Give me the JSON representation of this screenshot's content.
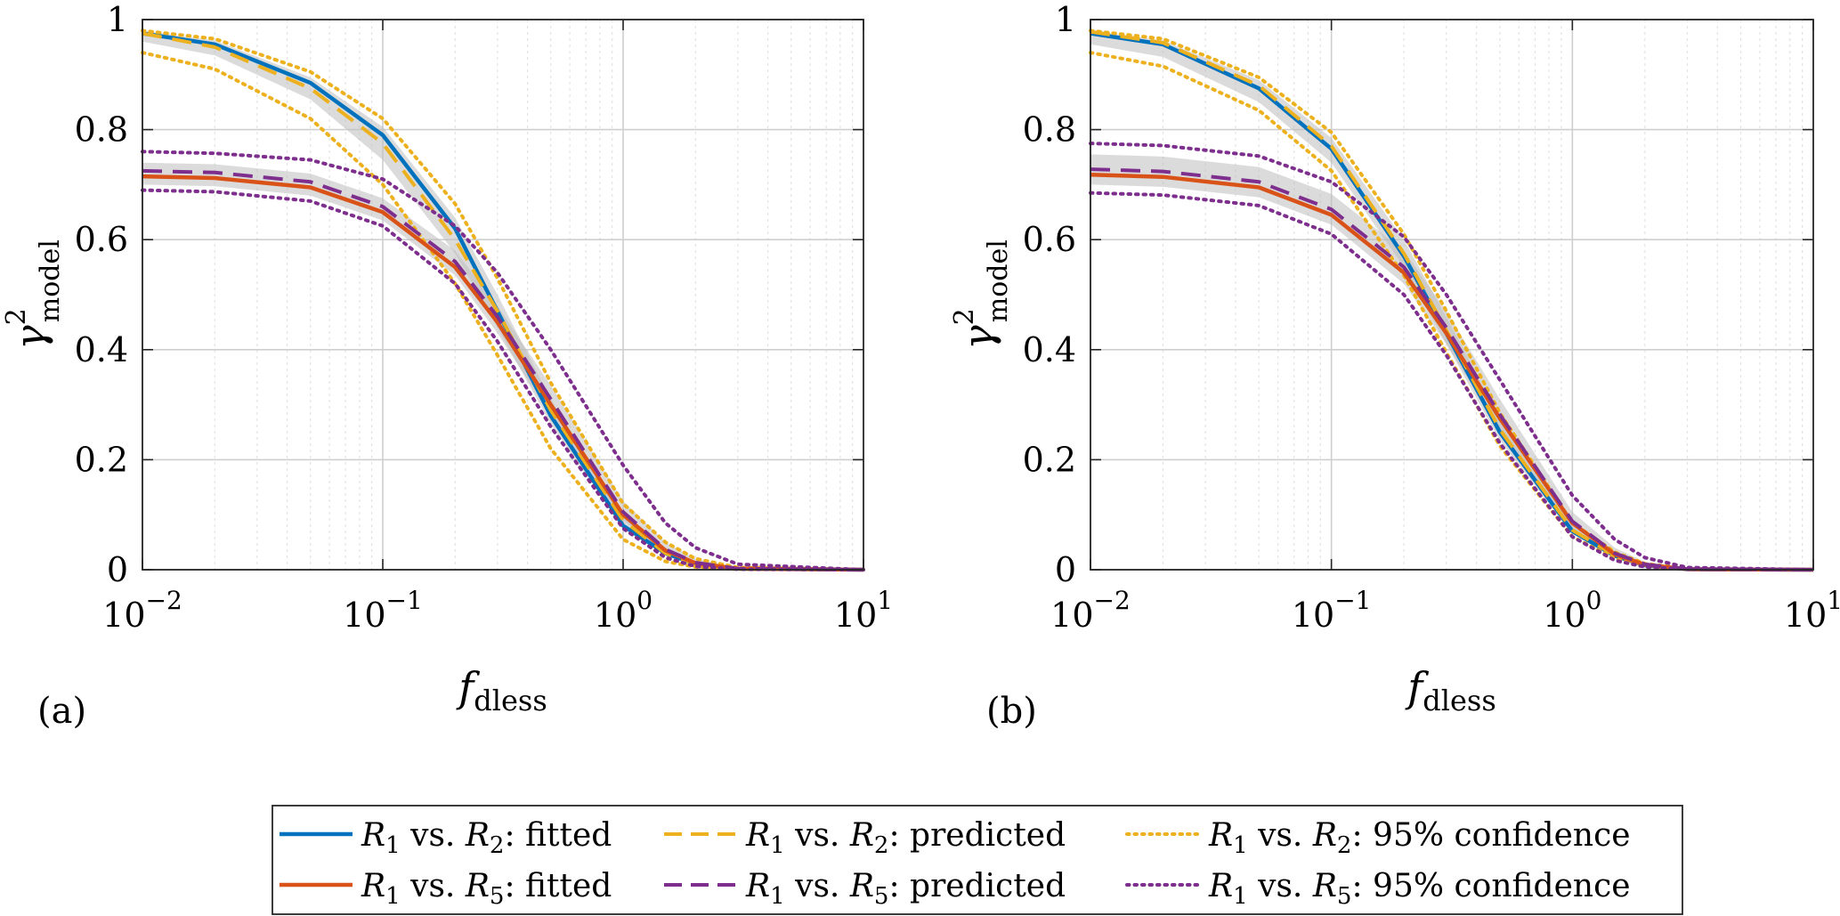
{
  "legend": {
    "items": [
      {
        "pre": "R",
        "sub": "1",
        "mid": " vs. ",
        "pre2": "R",
        "sub2": "2",
        "post": ":  fitted",
        "color": "#0072BD",
        "style": "solid"
      },
      {
        "pre": "R",
        "sub": "1",
        "mid": " vs. ",
        "pre2": "R",
        "sub2": "2",
        "post": ":  predicted",
        "color": "#EDB120",
        "style": "dashed"
      },
      {
        "pre": "R",
        "sub": "1",
        "mid": " vs. ",
        "pre2": "R",
        "sub2": "2",
        "post": ":  95% confidence",
        "color": "#EDB120",
        "style": "dotted"
      },
      {
        "pre": "R",
        "sub": "1",
        "mid": " vs. ",
        "pre2": "R",
        "sub2": "5",
        "post": ":  fitted",
        "color": "#D95319",
        "style": "solid"
      },
      {
        "pre": "R",
        "sub": "1",
        "mid": " vs. ",
        "pre2": "R",
        "sub2": "5",
        "post": ":  predicted",
        "color": "#7E2F8E",
        "style": "dashed"
      },
      {
        "pre": "R",
        "sub": "1",
        "mid": " vs. ",
        "pre2": "R",
        "sub2": "5",
        "post": ":  95% confidence",
        "color": "#7E2F8E",
        "style": "dotted"
      }
    ]
  },
  "chart_data": [
    {
      "type": "line",
      "panel_label": "(a)",
      "xlabel": {
        "base": "f",
        "sub": "dless"
      },
      "ylabel": {
        "base": "γ",
        "sup": "2",
        "sub": "model"
      },
      "xscale": "log",
      "xlim": [
        0.01,
        10
      ],
      "ylim": [
        0,
        1
      ],
      "xticks": [
        {
          "value": 0.01,
          "base": "10",
          "exp": "−2"
        },
        {
          "value": 0.1,
          "base": "10",
          "exp": "−1"
        },
        {
          "value": 1,
          "base": "10",
          "exp": "0"
        },
        {
          "value": 10,
          "base": "10",
          "exp": "1"
        }
      ],
      "yticks": [
        {
          "value": 0,
          "label": "0"
        },
        {
          "value": 0.2,
          "label": "0.2"
        },
        {
          "value": 0.4,
          "label": "0.4"
        },
        {
          "value": 0.6,
          "label": "0.6"
        },
        {
          "value": 0.8,
          "label": "0.8"
        },
        {
          "value": 1,
          "label": "1"
        }
      ],
      "grid": true,
      "series": [
        {
          "name": "R1 vs. R2: fitted",
          "color": "#0072BD",
          "style": "solid",
          "x": [
            0.01,
            0.02,
            0.05,
            0.1,
            0.2,
            0.3,
            0.5,
            1,
            1.5,
            2,
            3,
            10
          ],
          "y": [
            0.975,
            0.955,
            0.885,
            0.79,
            0.62,
            0.47,
            0.28,
            0.08,
            0.03,
            0.01,
            0.002,
            0
          ]
        },
        {
          "name": "R1 vs. R2: predicted",
          "color": "#EDB120",
          "style": "dashed",
          "x": [
            0.01,
            0.02,
            0.05,
            0.1,
            0.2,
            0.3,
            0.5,
            1,
            1.5,
            2,
            3,
            10
          ],
          "y": [
            0.975,
            0.95,
            0.875,
            0.775,
            0.6,
            0.47,
            0.29,
            0.09,
            0.03,
            0.01,
            0.002,
            0
          ]
        },
        {
          "name": "R1 vs. R2: 95% confidence upper",
          "color": "#EDB120",
          "style": "dotted",
          "x": [
            0.01,
            0.02,
            0.05,
            0.1,
            0.2,
            0.3,
            0.5,
            1,
            1.5,
            2,
            3,
            10
          ],
          "y": [
            0.98,
            0.965,
            0.905,
            0.82,
            0.665,
            0.53,
            0.34,
            0.12,
            0.05,
            0.02,
            0.004,
            0
          ]
        },
        {
          "name": "R1 vs. R2: 95% confidence lower",
          "color": "#EDB120",
          "style": "dotted",
          "x": [
            0.01,
            0.02,
            0.05,
            0.1,
            0.2,
            0.3,
            0.5,
            1,
            1.5,
            2,
            3,
            10
          ],
          "y": [
            0.94,
            0.91,
            0.82,
            0.7,
            0.52,
            0.39,
            0.22,
            0.055,
            0.015,
            0.005,
            0.001,
            0
          ]
        },
        {
          "name": "R1 vs. R5: fitted",
          "color": "#D95319",
          "style": "solid",
          "x": [
            0.01,
            0.02,
            0.05,
            0.1,
            0.2,
            0.3,
            0.5,
            1,
            1.5,
            2,
            3,
            10
          ],
          "y": [
            0.715,
            0.712,
            0.695,
            0.65,
            0.55,
            0.45,
            0.3,
            0.1,
            0.035,
            0.012,
            0.002,
            0
          ]
        },
        {
          "name": "R1 vs. R5: predicted",
          "color": "#7E2F8E",
          "style": "dashed",
          "x": [
            0.01,
            0.02,
            0.05,
            0.1,
            0.2,
            0.3,
            0.5,
            1,
            1.5,
            2,
            3,
            10
          ],
          "y": [
            0.725,
            0.722,
            0.705,
            0.66,
            0.56,
            0.46,
            0.31,
            0.105,
            0.037,
            0.013,
            0.002,
            0
          ]
        },
        {
          "name": "R1 vs. R5: 95% confidence upper",
          "color": "#7E2F8E",
          "style": "dotted",
          "x": [
            0.01,
            0.02,
            0.05,
            0.1,
            0.2,
            0.3,
            0.5,
            1,
            1.5,
            2,
            3,
            10
          ],
          "y": [
            0.76,
            0.757,
            0.745,
            0.71,
            0.625,
            0.54,
            0.4,
            0.19,
            0.085,
            0.04,
            0.01,
            0
          ]
        },
        {
          "name": "R1 vs. R5: 95% confidence lower",
          "color": "#7E2F8E",
          "style": "dotted",
          "x": [
            0.01,
            0.02,
            0.05,
            0.1,
            0.2,
            0.3,
            0.5,
            1,
            1.5,
            2,
            3,
            10
          ],
          "y": [
            0.69,
            0.687,
            0.67,
            0.625,
            0.52,
            0.415,
            0.26,
            0.075,
            0.022,
            0.006,
            0.001,
            0
          ]
        }
      ],
      "bands": [
        {
          "color": "#bdbdbd",
          "x": [
            0.01,
            0.02,
            0.05,
            0.1,
            0.2,
            0.3,
            0.5,
            1,
            1.5,
            2,
            3,
            10
          ],
          "lower": [
            0.96,
            0.935,
            0.855,
            0.745,
            0.575,
            0.44,
            0.265,
            0.075,
            0.025,
            0.008,
            0.001,
            0
          ],
          "upper": [
            0.98,
            0.962,
            0.895,
            0.805,
            0.64,
            0.5,
            0.31,
            0.1,
            0.04,
            0.015,
            0.003,
            0
          ]
        },
        {
          "color": "#bdbdbd",
          "x": [
            0.01,
            0.02,
            0.05,
            0.1,
            0.2,
            0.3,
            0.5,
            1,
            1.5,
            2,
            3,
            10
          ],
          "lower": [
            0.7,
            0.697,
            0.68,
            0.635,
            0.535,
            0.43,
            0.28,
            0.09,
            0.03,
            0.01,
            0.001,
            0
          ],
          "upper": [
            0.74,
            0.737,
            0.72,
            0.675,
            0.58,
            0.48,
            0.335,
            0.125,
            0.05,
            0.02,
            0.004,
            0
          ]
        }
      ]
    },
    {
      "type": "line",
      "panel_label": "(b)",
      "xlabel": {
        "base": "f",
        "sub": "dless"
      },
      "ylabel": {
        "base": "γ",
        "sup": "2",
        "sub": "model"
      },
      "xscale": "log",
      "xlim": [
        0.01,
        10
      ],
      "ylim": [
        0,
        1
      ],
      "xticks": [
        {
          "value": 0.01,
          "base": "10",
          "exp": "−2"
        },
        {
          "value": 0.1,
          "base": "10",
          "exp": "−1"
        },
        {
          "value": 1,
          "base": "10",
          "exp": "0"
        },
        {
          "value": 10,
          "base": "10",
          "exp": "1"
        }
      ],
      "yticks": [
        {
          "value": 0,
          "label": "0"
        },
        {
          "value": 0.2,
          "label": "0.2"
        },
        {
          "value": 0.4,
          "label": "0.4"
        },
        {
          "value": 0.6,
          "label": "0.6"
        },
        {
          "value": 0.8,
          "label": "0.8"
        },
        {
          "value": 1,
          "label": "1"
        }
      ],
      "grid": true,
      "series": [
        {
          "name": "R1 vs. R2: fitted",
          "color": "#0072BD",
          "style": "solid",
          "x": [
            0.01,
            0.02,
            0.05,
            0.1,
            0.2,
            0.3,
            0.5,
            1,
            1.5,
            2,
            3,
            10
          ],
          "y": [
            0.975,
            0.955,
            0.875,
            0.765,
            0.57,
            0.43,
            0.25,
            0.07,
            0.025,
            0.008,
            0.001,
            0
          ]
        },
        {
          "name": "R1 vs. R2: predicted",
          "color": "#EDB120",
          "style": "dashed",
          "x": [
            0.01,
            0.02,
            0.05,
            0.1,
            0.2,
            0.3,
            0.5,
            1,
            1.5,
            2,
            3,
            10
          ],
          "y": [
            0.978,
            0.958,
            0.88,
            0.77,
            0.575,
            0.435,
            0.255,
            0.072,
            0.026,
            0.008,
            0.001,
            0
          ]
        },
        {
          "name": "R1 vs. R2: 95% confidence upper",
          "color": "#EDB120",
          "style": "dotted",
          "x": [
            0.01,
            0.02,
            0.05,
            0.1,
            0.2,
            0.3,
            0.5,
            1,
            1.5,
            2,
            3,
            10
          ],
          "y": [
            0.98,
            0.965,
            0.895,
            0.795,
            0.61,
            0.47,
            0.285,
            0.085,
            0.032,
            0.011,
            0.002,
            0
          ]
        },
        {
          "name": "R1 vs. R2: 95% confidence lower",
          "color": "#EDB120",
          "style": "dotted",
          "x": [
            0.01,
            0.02,
            0.05,
            0.1,
            0.2,
            0.3,
            0.5,
            1,
            1.5,
            2,
            3,
            10
          ],
          "y": [
            0.94,
            0.915,
            0.835,
            0.725,
            0.535,
            0.395,
            0.225,
            0.06,
            0.02,
            0.006,
            0.001,
            0
          ]
        },
        {
          "name": "R1 vs. R5: fitted",
          "color": "#D95319",
          "style": "solid",
          "x": [
            0.01,
            0.02,
            0.05,
            0.1,
            0.2,
            0.3,
            0.5,
            1,
            1.5,
            2,
            3,
            10
          ],
          "y": [
            0.718,
            0.714,
            0.695,
            0.645,
            0.54,
            0.43,
            0.275,
            0.085,
            0.028,
            0.009,
            0.001,
            0
          ]
        },
        {
          "name": "R1 vs. R5: predicted",
          "color": "#7E2F8E",
          "style": "dashed",
          "x": [
            0.01,
            0.02,
            0.05,
            0.1,
            0.2,
            0.3,
            0.5,
            1,
            1.5,
            2,
            3,
            10
          ],
          "y": [
            0.728,
            0.724,
            0.705,
            0.655,
            0.55,
            0.44,
            0.282,
            0.088,
            0.03,
            0.01,
            0.001,
            0
          ]
        },
        {
          "name": "R1 vs. R5: 95% confidence upper",
          "color": "#7E2F8E",
          "style": "dotted",
          "x": [
            0.01,
            0.02,
            0.05,
            0.1,
            0.2,
            0.3,
            0.5,
            1,
            1.5,
            2,
            3,
            10
          ],
          "y": [
            0.775,
            0.771,
            0.752,
            0.705,
            0.605,
            0.5,
            0.345,
            0.135,
            0.055,
            0.022,
            0.004,
            0
          ]
        },
        {
          "name": "R1 vs. R5: 95% confidence lower",
          "color": "#7E2F8E",
          "style": "dotted",
          "x": [
            0.01,
            0.02,
            0.05,
            0.1,
            0.2,
            0.3,
            0.5,
            1,
            1.5,
            2,
            3,
            10
          ],
          "y": [
            0.685,
            0.681,
            0.662,
            0.61,
            0.5,
            0.39,
            0.23,
            0.06,
            0.017,
            0.005,
            0.001,
            0
          ]
        }
      ],
      "bands": [
        {
          "color": "#bdbdbd",
          "x": [
            0.01,
            0.02,
            0.05,
            0.1,
            0.2,
            0.3,
            0.5,
            1,
            1.5,
            2,
            3,
            10
          ],
          "lower": [
            0.955,
            0.932,
            0.85,
            0.74,
            0.55,
            0.41,
            0.235,
            0.065,
            0.022,
            0.007,
            0.001,
            0
          ],
          "upper": [
            0.98,
            0.962,
            0.89,
            0.785,
            0.6,
            0.46,
            0.275,
            0.08,
            0.03,
            0.01,
            0.002,
            0
          ]
        },
        {
          "color": "#bdbdbd",
          "x": [
            0.01,
            0.02,
            0.05,
            0.1,
            0.2,
            0.3,
            0.5,
            1,
            1.5,
            2,
            3,
            10
          ],
          "lower": [
            0.7,
            0.696,
            0.677,
            0.627,
            0.52,
            0.41,
            0.255,
            0.075,
            0.024,
            0.008,
            0.001,
            0
          ],
          "upper": [
            0.755,
            0.751,
            0.732,
            0.683,
            0.58,
            0.47,
            0.31,
            0.105,
            0.04,
            0.014,
            0.002,
            0
          ]
        }
      ]
    }
  ]
}
